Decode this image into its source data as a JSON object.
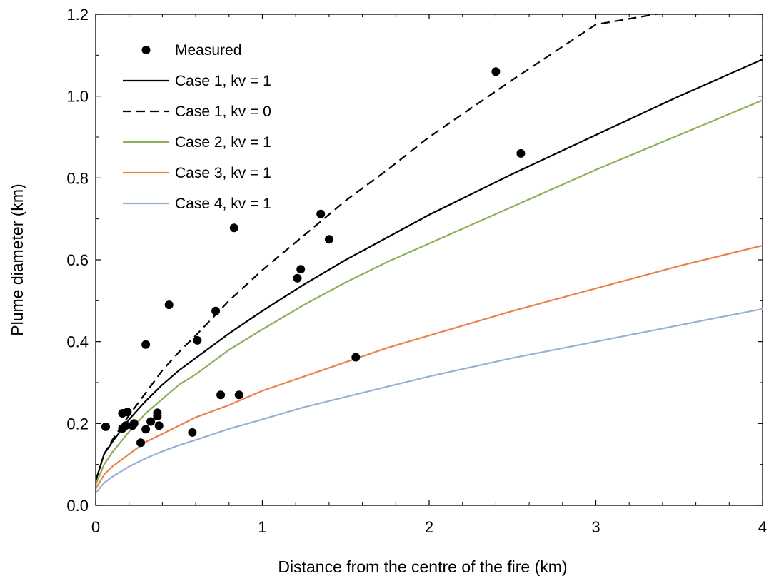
{
  "chart_data": {
    "type": "scatter",
    "title": "",
    "xlabel": "Distance from the centre of the fire (km)",
    "ylabel": "Plume diameter (km)",
    "xlim": [
      0,
      4
    ],
    "ylim": [
      0,
      1.2
    ],
    "x_ticks": [
      "0",
      "1",
      "2",
      "3",
      "4"
    ],
    "y_ticks": [
      "0.0",
      "0.2",
      "0.4",
      "0.6",
      "0.8",
      "1.0",
      "1.2"
    ],
    "grid": false,
    "legend_position": "top-left",
    "series": [
      {
        "name": "Measured",
        "kind": "markers",
        "color": "#000000",
        "points": [
          [
            0.06,
            0.192
          ],
          [
            0.16,
            0.188
          ],
          [
            0.16,
            0.225
          ],
          [
            0.18,
            0.195
          ],
          [
            0.19,
            0.228
          ],
          [
            0.22,
            0.195
          ],
          [
            0.23,
            0.2
          ],
          [
            0.27,
            0.153
          ],
          [
            0.3,
            0.186
          ],
          [
            0.3,
            0.393
          ],
          [
            0.33,
            0.205
          ],
          [
            0.37,
            0.218
          ],
          [
            0.37,
            0.226
          ],
          [
            0.38,
            0.195
          ],
          [
            0.44,
            0.49
          ],
          [
            0.58,
            0.178
          ],
          [
            0.61,
            0.403
          ],
          [
            0.72,
            0.475
          ],
          [
            0.75,
            0.27
          ],
          [
            0.83,
            0.678
          ],
          [
            0.86,
            0.27
          ],
          [
            1.21,
            0.555
          ],
          [
            1.23,
            0.577
          ],
          [
            1.35,
            0.712
          ],
          [
            1.4,
            0.65
          ],
          [
            1.56,
            0.362
          ],
          [
            2.4,
            1.06
          ],
          [
            2.55,
            0.86
          ]
        ]
      },
      {
        "name": "Case 1, kv = 1",
        "kind": "line",
        "color": "#000000",
        "dash": "",
        "x": [
          0,
          0.05,
          0.1,
          0.2,
          0.3,
          0.4,
          0.5,
          0.6,
          0.8,
          1.0,
          1.25,
          1.5,
          1.75,
          2.0,
          2.5,
          3.0,
          3.5,
          4.0
        ],
        "y": [
          0.06,
          0.125,
          0.155,
          0.21,
          0.255,
          0.295,
          0.33,
          0.36,
          0.42,
          0.475,
          0.54,
          0.6,
          0.655,
          0.71,
          0.81,
          0.905,
          1.0,
          1.09
        ]
      },
      {
        "name": "Case 1, kv = 0",
        "kind": "line",
        "color": "#000000",
        "dash": "12,7",
        "x": [
          0,
          0.05,
          0.1,
          0.2,
          0.3,
          0.4,
          0.5,
          0.6,
          0.8,
          1.0,
          1.25,
          1.5,
          1.75,
          2.0,
          2.5,
          3.0,
          3.5
        ],
        "y": [
          0.06,
          0.125,
          0.16,
          0.22,
          0.275,
          0.33,
          0.375,
          0.415,
          0.5,
          0.575,
          0.66,
          0.745,
          0.82,
          0.9,
          1.04,
          1.175,
          1.21
        ]
      },
      {
        "name": "Case 2, kv = 1",
        "kind": "line",
        "color": "#8cb05a",
        "dash": "",
        "x": [
          0,
          0.05,
          0.1,
          0.2,
          0.3,
          0.4,
          0.5,
          0.6,
          0.8,
          1.0,
          1.25,
          1.5,
          1.75,
          2.0,
          2.5,
          3.0,
          3.5,
          4.0
        ],
        "y": [
          0.05,
          0.1,
          0.13,
          0.18,
          0.225,
          0.26,
          0.295,
          0.32,
          0.38,
          0.43,
          0.49,
          0.545,
          0.595,
          0.64,
          0.73,
          0.82,
          0.905,
          0.99
        ]
      },
      {
        "name": "Case 3, kv = 1",
        "kind": "line",
        "color": "#e8834b",
        "dash": "",
        "x": [
          0,
          0.05,
          0.1,
          0.2,
          0.3,
          0.4,
          0.5,
          0.6,
          0.8,
          1.0,
          1.25,
          1.5,
          1.75,
          2.0,
          2.5,
          3.0,
          3.5,
          4.0
        ],
        "y": [
          0.04,
          0.075,
          0.095,
          0.125,
          0.155,
          0.175,
          0.195,
          0.215,
          0.245,
          0.28,
          0.315,
          0.35,
          0.385,
          0.415,
          0.475,
          0.53,
          0.585,
          0.635
        ]
      },
      {
        "name": "Case 4, kv = 1",
        "kind": "line",
        "color": "#98afd6",
        "dash": "",
        "x": [
          0,
          0.05,
          0.1,
          0.2,
          0.3,
          0.4,
          0.5,
          0.6,
          0.8,
          1.0,
          1.25,
          1.5,
          1.75,
          2.0,
          2.5,
          3.0,
          3.5,
          4.0
        ],
        "y": [
          0.03,
          0.055,
          0.07,
          0.095,
          0.115,
          0.132,
          0.147,
          0.16,
          0.187,
          0.21,
          0.24,
          0.265,
          0.29,
          0.315,
          0.36,
          0.4,
          0.44,
          0.48
        ]
      }
    ]
  }
}
